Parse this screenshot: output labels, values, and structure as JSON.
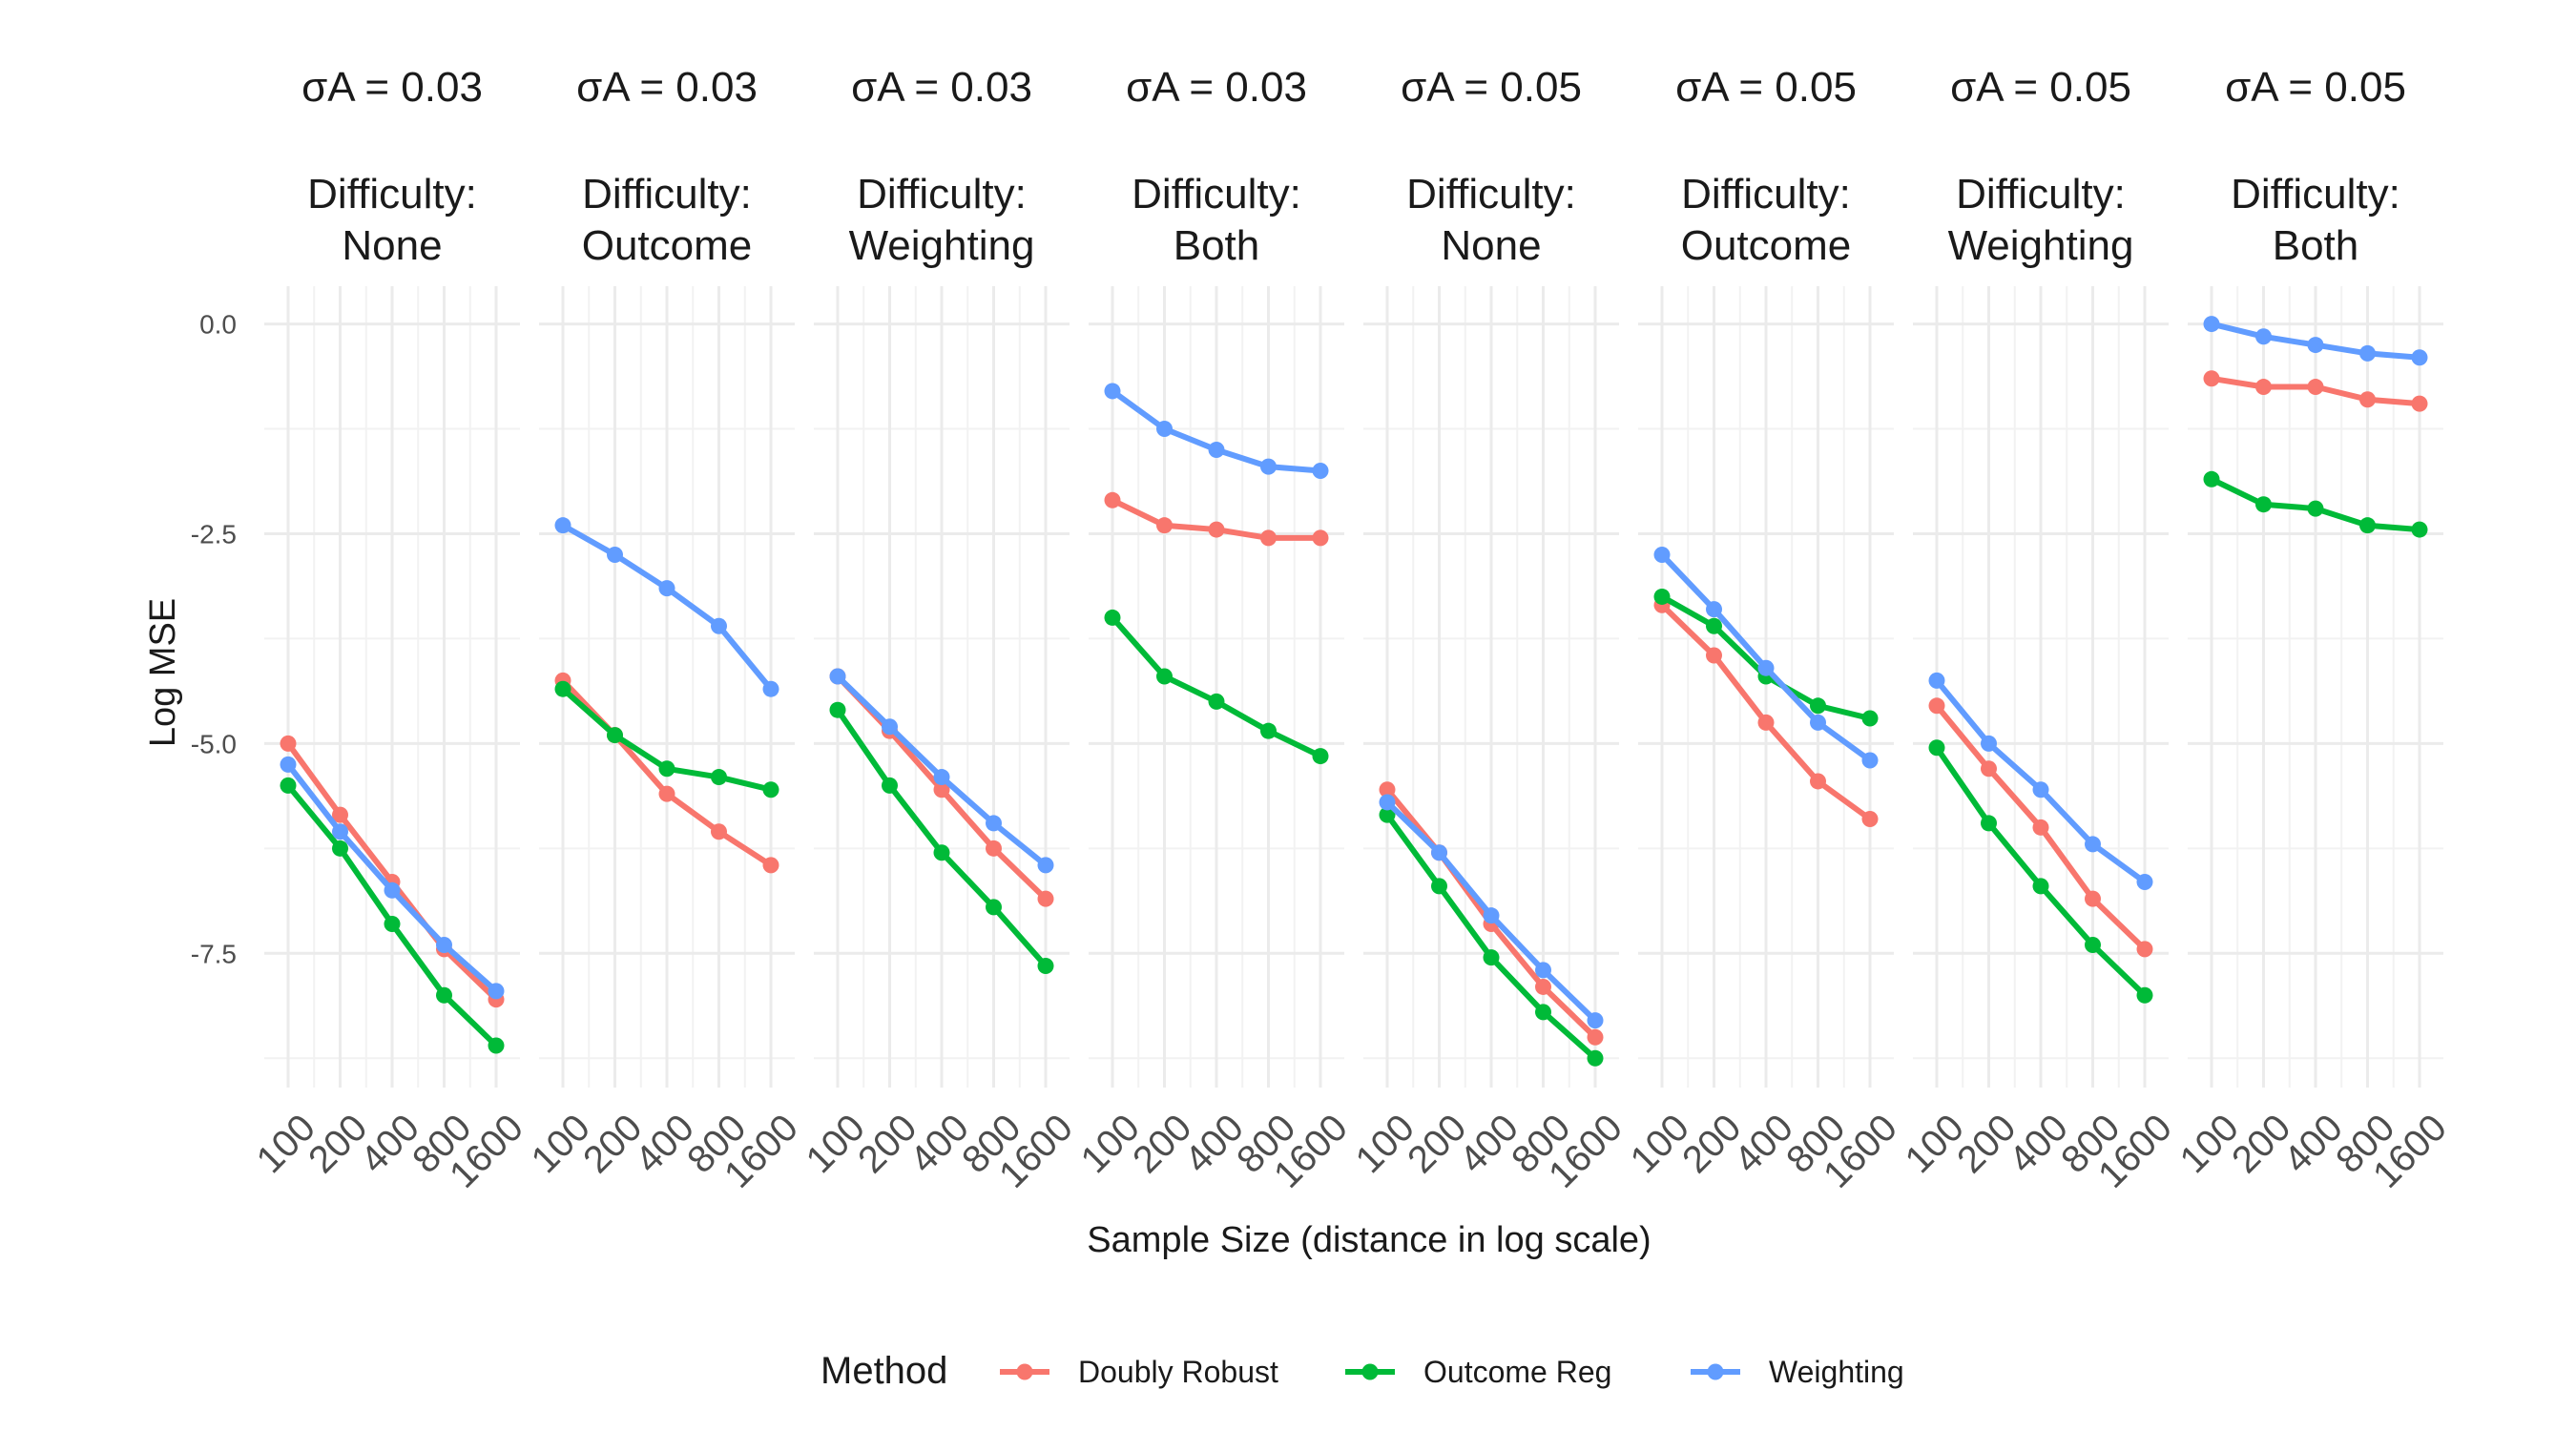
{
  "chart_data": {
    "type": "line",
    "title": "",
    "xlabel": "Sample Size (distance in log scale)",
    "ylabel": "Log MSE",
    "x": [
      100,
      200,
      400,
      800,
      1600
    ],
    "x_tick_labels": [
      "100",
      "200",
      "400",
      "800",
      "1600"
    ],
    "x_scale": "log",
    "ylim": [
      -9.1,
      0.45
    ],
    "y_ticks": [
      0,
      -2.5,
      -5,
      -7.5
    ],
    "y_tick_labels": [
      "0.0",
      "-2.5",
      "-5.0",
      "-7.5"
    ],
    "grid": true,
    "legend": {
      "title": "Method",
      "position": "bottom",
      "entries": [
        {
          "name": "Doubly Robust",
          "color": "#F8766D"
        },
        {
          "name": "Outcome Reg",
          "color": "#00BA38"
        },
        {
          "name": "Weighting",
          "color": "#619CFF"
        }
      ]
    },
    "panels": [
      {
        "sigma": "σA = 0.03",
        "difficulty": [
          "Difficulty:",
          "None"
        ],
        "series": {
          "Doubly Robust": [
            -5.0,
            -5.85,
            -6.65,
            -7.45,
            -8.05
          ],
          "Outcome Reg": [
            -5.5,
            -6.25,
            -7.15,
            -8.0,
            -8.6
          ],
          "Weighting": [
            -5.25,
            -6.05,
            -6.75,
            -7.4,
            -7.95
          ]
        }
      },
      {
        "sigma": "σA = 0.03",
        "difficulty": [
          "Difficulty:",
          "Outcome"
        ],
        "series": {
          "Doubly Robust": [
            -4.25,
            -4.9,
            -5.6,
            -6.05,
            -6.45
          ],
          "Outcome Reg": [
            -4.35,
            -4.9,
            -5.3,
            -5.4,
            -5.55
          ],
          "Weighting": [
            -2.4,
            -2.75,
            -3.15,
            -3.6,
            -4.35
          ]
        }
      },
      {
        "sigma": "σA = 0.03",
        "difficulty": [
          "Difficulty:",
          "Weighting"
        ],
        "series": {
          "Doubly Robust": [
            -4.2,
            -4.85,
            -5.55,
            -6.25,
            -6.85
          ],
          "Outcome Reg": [
            -4.6,
            -5.5,
            -6.3,
            -6.95,
            -7.65
          ],
          "Weighting": [
            -4.2,
            -4.8,
            -5.4,
            -5.95,
            -6.45
          ]
        }
      },
      {
        "sigma": "σA = 0.03",
        "difficulty": [
          "Difficulty:",
          "Both"
        ],
        "series": {
          "Doubly Robust": [
            -2.1,
            -2.4,
            -2.45,
            -2.55,
            -2.55
          ],
          "Outcome Reg": [
            -3.5,
            -4.2,
            -4.5,
            -4.85,
            -5.15
          ],
          "Weighting": [
            -0.8,
            -1.25,
            -1.5,
            -1.7,
            -1.75
          ]
        }
      },
      {
        "sigma": "σA = 0.05",
        "difficulty": [
          "Difficulty:",
          "None"
        ],
        "series": {
          "Doubly Robust": [
            -5.55,
            -6.3,
            -7.15,
            -7.9,
            -8.5
          ],
          "Outcome Reg": [
            -5.85,
            -6.7,
            -7.55,
            -8.2,
            -8.75
          ],
          "Weighting": [
            -5.7,
            -6.3,
            -7.05,
            -7.7,
            -8.3
          ]
        }
      },
      {
        "sigma": "σA = 0.05",
        "difficulty": [
          "Difficulty:",
          "Outcome"
        ],
        "series": {
          "Doubly Robust": [
            -3.35,
            -3.95,
            -4.75,
            -5.45,
            -5.9
          ],
          "Outcome Reg": [
            -3.25,
            -3.6,
            -4.2,
            -4.55,
            -4.7
          ],
          "Weighting": [
            -2.75,
            -3.4,
            -4.1,
            -4.75,
            -5.2
          ]
        }
      },
      {
        "sigma": "σA = 0.05",
        "difficulty": [
          "Difficulty:",
          "Weighting"
        ],
        "series": {
          "Doubly Robust": [
            -4.55,
            -5.3,
            -6.0,
            -6.85,
            -7.45
          ],
          "Outcome Reg": [
            -5.05,
            -5.95,
            -6.7,
            -7.4,
            -8.0
          ],
          "Weighting": [
            -4.25,
            -5.0,
            -5.55,
            -6.2,
            -6.65
          ]
        }
      },
      {
        "sigma": "σA = 0.05",
        "difficulty": [
          "Difficulty:",
          "Both"
        ],
        "series": {
          "Doubly Robust": [
            -0.65,
            -0.75,
            -0.75,
            -0.9,
            -0.95
          ],
          "Outcome Reg": [
            -1.85,
            -2.15,
            -2.2,
            -2.4,
            -2.45
          ],
          "Weighting": [
            0.0,
            -0.15,
            -0.25,
            -0.35,
            -0.4
          ]
        }
      }
    ]
  }
}
